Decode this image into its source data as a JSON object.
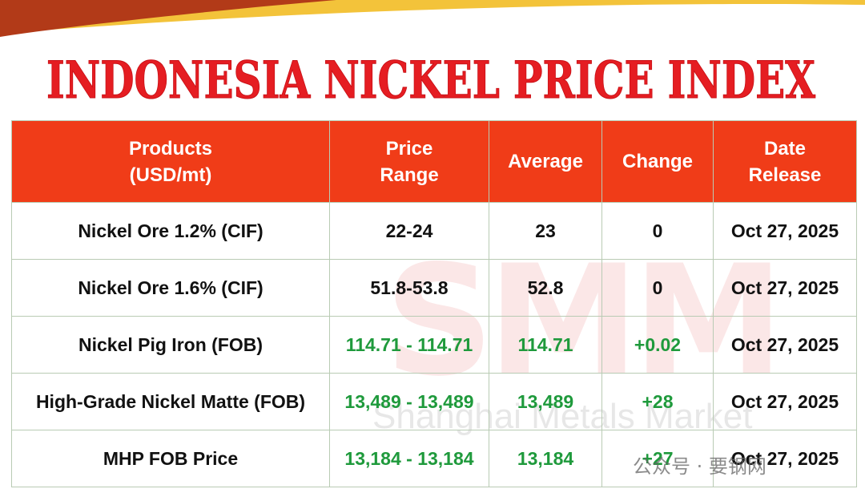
{
  "title": "INDONESIA NICKEL PRICE INDEX",
  "table": {
    "header": [
      "Products\n(USD/mt)",
      "Price\nRange",
      "Average",
      "Change",
      "Date\nRelease"
    ],
    "rows": [
      [
        "Nickel Ore 1.2% (CIF)",
        "22-24",
        "23",
        "0",
        "Oct 27, 2025"
      ],
      [
        "Nickel Ore 1.6% (CIF)",
        "51.8-53.8",
        "52.8",
        "0",
        "Oct 27, 2025"
      ],
      [
        "Nickel Pig Iron (FOB)",
        "114.71 - 114.71",
        "114.71",
        "+0.02",
        "Oct 27, 2025"
      ],
      [
        "High-Grade Nickel Matte (FOB)",
        "13,489 - 13,489",
        "13,489",
        "+28",
        "Oct 27, 2025"
      ],
      [
        "MHP FOB Price",
        "13,184 - 13,184",
        "13,184",
        "+27",
        "Oct 27, 2025"
      ]
    ]
  },
  "watermark": {
    "logo": "SMM",
    "name": "Shanghai Metals Market"
  },
  "overlay": "公众号 · 要钢网"
}
